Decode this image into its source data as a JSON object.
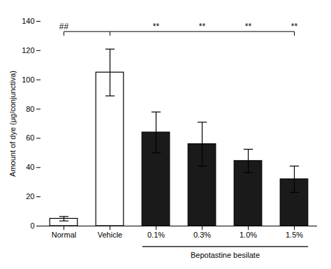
{
  "chart_data": {
    "type": "bar",
    "categories": [
      "Normal",
      "Vehicle",
      "0.1%",
      "0.3%",
      "1.0%",
      "1.5%"
    ],
    "values": [
      5.0,
      105.0,
      64.0,
      56.0,
      44.5,
      32.0
    ],
    "errors": [
      1.5,
      16.0,
      14.0,
      15.0,
      8.0,
      9.0
    ],
    "colors": [
      "white",
      "white",
      "#1a1a1a",
      "#1a1a1a",
      "#1a1a1a",
      "#1a1a1a"
    ],
    "ylabel": "Amount of dye (μg/conjunctiva)",
    "ylim": [
      0,
      140
    ],
    "yticks": [
      0,
      20,
      40,
      60,
      80,
      100,
      120,
      140
    ],
    "grid": false,
    "group": {
      "label": "Bepotastine besilate",
      "categories": [
        "0.1%",
        "0.3%",
        "1.0%",
        "1.5%"
      ]
    },
    "significance": [
      {
        "from": "Normal",
        "to": "Vehicle",
        "labels": [
          {
            "category": "Normal",
            "text": "##"
          }
        ]
      },
      {
        "from": "Vehicle",
        "to": "1.5%",
        "labels": [
          {
            "category": "0.1%",
            "text": "**"
          },
          {
            "category": "0.3%",
            "text": "**"
          },
          {
            "category": "1.0%",
            "text": "**"
          },
          {
            "category": "1.5%",
            "text": "**"
          }
        ]
      }
    ]
  }
}
